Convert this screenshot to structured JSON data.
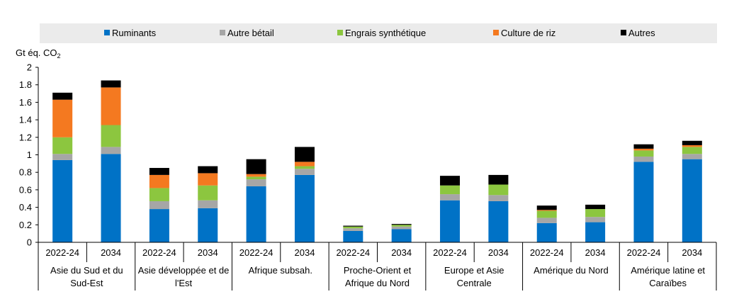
{
  "chart_data": {
    "type": "bar",
    "stacked": true,
    "ylabel": "Gt éq. CO",
    "ylabel_sub": "2",
    "ylim": [
      0,
      2
    ],
    "yticks": [
      "0",
      "0.2",
      "0.4",
      "0.6",
      "0.8",
      "1",
      "1.2",
      "1.4",
      "1.6",
      "1.8",
      "2"
    ],
    "ytick_values": [
      0,
      0.2,
      0.4,
      0.6,
      0.8,
      1,
      1.2,
      1.4,
      1.6,
      1.8,
      2
    ],
    "legend_position": "top",
    "categories": [
      "2022-24",
      "2034",
      "2022-24",
      "2034",
      "2022-24",
      "2034",
      "2022-24",
      "2034",
      "2022-24",
      "2034",
      "2022-24",
      "2034",
      "2022-24",
      "2034"
    ],
    "groups": [
      {
        "lines": [
          "Asie du Sud et du",
          "Sud-Est"
        ]
      },
      {
        "lines": [
          "Asie développée et de",
          "l'Est"
        ]
      },
      {
        "lines": [
          "Afrique subsah."
        ]
      },
      {
        "lines": [
          "Proche-Orient et",
          "Afrique du Nord"
        ]
      },
      {
        "lines": [
          "Europe et Asie",
          "Centrale"
        ]
      },
      {
        "lines": [
          "Amérique du Nord"
        ]
      },
      {
        "lines": [
          "Amérique latine et",
          "Caraïbes"
        ]
      }
    ],
    "series": [
      {
        "name": "Ruminants",
        "color": "#0072C6",
        "values": [
          0.94,
          1.01,
          0.38,
          0.39,
          0.64,
          0.77,
          0.13,
          0.15,
          0.48,
          0.47,
          0.22,
          0.23,
          0.92,
          0.95
        ]
      },
      {
        "name": "Autre bétail",
        "color": "#A6A6A6",
        "values": [
          0.07,
          0.08,
          0.09,
          0.09,
          0.08,
          0.07,
          0.03,
          0.03,
          0.07,
          0.07,
          0.06,
          0.06,
          0.06,
          0.06
        ]
      },
      {
        "name": "Engrais synthétique",
        "color": "#8CC63F",
        "values": [
          0.19,
          0.25,
          0.15,
          0.17,
          0.03,
          0.03,
          0.02,
          0.02,
          0.1,
          0.12,
          0.08,
          0.09,
          0.07,
          0.08
        ]
      },
      {
        "name": "Culture de riz",
        "color": "#F47920",
        "values": [
          0.43,
          0.43,
          0.15,
          0.14,
          0.03,
          0.05,
          0.0,
          0.0,
          0.0,
          0.0,
          0.01,
          0.0,
          0.02,
          0.02
        ]
      },
      {
        "name": "Autres",
        "color": "#000000",
        "values": [
          0.08,
          0.08,
          0.08,
          0.08,
          0.17,
          0.17,
          0.01,
          0.01,
          0.11,
          0.11,
          0.05,
          0.05,
          0.05,
          0.05
        ]
      }
    ]
  }
}
